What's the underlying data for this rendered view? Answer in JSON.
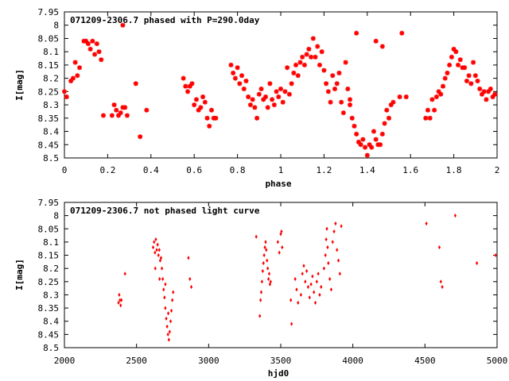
{
  "chart_data": [
    {
      "type": "scatter",
      "title": "071209-2306.7 phased with P=290.0day",
      "xlabel": "phase",
      "ylabel": "I[mag]",
      "xlim": [
        0,
        2
      ],
      "ylim": [
        8.5,
        7.95
      ],
      "y_inverted": true,
      "x_ticks": [
        "0",
        "0.2",
        "0.4",
        "0.6",
        "0.8",
        "1",
        "1.2",
        "1.4",
        "1.6",
        "1.8",
        "2"
      ],
      "y_ticks": [
        "7.95",
        "8",
        "8.05",
        "8.1",
        "8.15",
        "8.2",
        "8.25",
        "8.3",
        "8.35",
        "8.4",
        "8.45",
        "8.5"
      ],
      "grid": false,
      "marker": "cross-star",
      "color": "#ff0000",
      "points": [
        [
          0.0,
          8.25
        ],
        [
          0.01,
          8.27
        ],
        [
          0.03,
          8.21
        ],
        [
          0.04,
          8.2
        ],
        [
          0.05,
          8.14
        ],
        [
          0.06,
          8.19
        ],
        [
          0.07,
          8.16
        ],
        [
          0.09,
          8.06
        ],
        [
          0.1,
          8.06
        ],
        [
          0.11,
          8.07
        ],
        [
          0.12,
          8.09
        ],
        [
          0.13,
          8.06
        ],
        [
          0.14,
          8.11
        ],
        [
          0.15,
          8.07
        ],
        [
          0.16,
          8.1
        ],
        [
          0.17,
          8.13
        ],
        [
          0.18,
          8.34
        ],
        [
          0.22,
          8.34
        ],
        [
          0.23,
          8.3
        ],
        [
          0.24,
          8.32
        ],
        [
          0.25,
          8.34
        ],
        [
          0.26,
          8.33
        ],
        [
          0.27,
          8.31
        ],
        [
          0.28,
          8.31
        ],
        [
          0.29,
          8.34
        ],
        [
          0.27,
          8.0
        ],
        [
          0.33,
          8.22
        ],
        [
          0.35,
          8.42
        ],
        [
          0.38,
          8.32
        ],
        [
          0.55,
          8.2
        ],
        [
          0.56,
          8.23
        ],
        [
          0.57,
          8.25
        ],
        [
          0.58,
          8.23
        ],
        [
          0.59,
          8.22
        ],
        [
          0.6,
          8.3
        ],
        [
          0.61,
          8.28
        ],
        [
          0.62,
          8.32
        ],
        [
          0.63,
          8.31
        ],
        [
          0.64,
          8.27
        ],
        [
          0.65,
          8.29
        ],
        [
          0.66,
          8.35
        ],
        [
          0.67,
          8.38
        ],
        [
          0.68,
          8.32
        ],
        [
          0.69,
          8.35
        ],
        [
          0.7,
          8.35
        ],
        [
          0.77,
          8.15
        ],
        [
          0.78,
          8.18
        ],
        [
          0.79,
          8.2
        ],
        [
          0.8,
          8.16
        ],
        [
          0.81,
          8.22
        ],
        [
          0.82,
          8.19
        ],
        [
          0.83,
          8.24
        ],
        [
          0.84,
          8.21
        ],
        [
          0.85,
          8.27
        ],
        [
          0.86,
          8.3
        ],
        [
          0.87,
          8.28
        ],
        [
          0.88,
          8.31
        ],
        [
          0.89,
          8.35
        ],
        [
          0.9,
          8.26
        ],
        [
          0.91,
          8.24
        ],
        [
          0.92,
          8.28
        ],
        [
          0.93,
          8.27
        ],
        [
          0.94,
          8.31
        ],
        [
          0.95,
          8.22
        ],
        [
          0.96,
          8.28
        ],
        [
          0.97,
          8.3
        ],
        [
          0.98,
          8.25
        ],
        [
          0.99,
          8.27
        ],
        [
          1.0,
          8.24
        ],
        [
          1.01,
          8.29
        ],
        [
          1.02,
          8.25
        ],
        [
          1.03,
          8.16
        ],
        [
          1.04,
          8.26
        ],
        [
          1.05,
          8.22
        ],
        [
          1.06,
          8.18
        ],
        [
          1.07,
          8.15
        ],
        [
          1.08,
          8.19
        ],
        [
          1.09,
          8.14
        ],
        [
          1.1,
          8.12
        ],
        [
          1.11,
          8.15
        ],
        [
          1.12,
          8.11
        ],
        [
          1.13,
          8.09
        ],
        [
          1.14,
          8.12
        ],
        [
          1.15,
          8.05
        ],
        [
          1.16,
          8.12
        ],
        [
          1.17,
          8.08
        ],
        [
          1.18,
          8.15
        ],
        [
          1.19,
          8.1
        ],
        [
          1.2,
          8.17
        ],
        [
          1.21,
          8.22
        ],
        [
          1.22,
          8.25
        ],
        [
          1.23,
          8.29
        ],
        [
          1.24,
          8.19
        ],
        [
          1.25,
          8.24
        ],
        [
          1.26,
          8.22
        ],
        [
          1.27,
          8.18
        ],
        [
          1.28,
          8.29
        ],
        [
          1.29,
          8.33
        ],
        [
          1.3,
          8.14
        ],
        [
          1.31,
          8.24
        ],
        [
          1.32,
          8.28
        ],
        [
          1.33,
          8.35
        ],
        [
          1.34,
          8.38
        ],
        [
          1.35,
          8.41
        ],
        [
          1.36,
          8.44
        ],
        [
          1.37,
          8.45
        ],
        [
          1.38,
          8.43
        ],
        [
          1.39,
          8.46
        ],
        [
          1.4,
          8.49
        ],
        [
          1.41,
          8.45
        ],
        [
          1.42,
          8.46
        ],
        [
          1.43,
          8.4
        ],
        [
          1.44,
          8.43
        ],
        [
          1.45,
          8.45
        ],
        [
          1.46,
          8.45
        ],
        [
          1.47,
          8.41
        ],
        [
          1.48,
          8.37
        ],
        [
          1.49,
          8.32
        ],
        [
          1.5,
          8.35
        ],
        [
          1.51,
          8.3
        ],
        [
          1.52,
          8.29
        ],
        [
          1.55,
          8.27
        ],
        [
          1.58,
          8.27
        ],
        [
          1.35,
          8.03
        ],
        [
          1.44,
          8.06
        ],
        [
          1.47,
          8.08
        ],
        [
          1.56,
          8.03
        ],
        [
          1.32,
          8.3
        ],
        [
          1.67,
          8.35
        ],
        [
          1.68,
          8.32
        ],
        [
          1.69,
          8.35
        ],
        [
          1.7,
          8.28
        ],
        [
          1.71,
          8.32
        ],
        [
          1.72,
          8.27
        ],
        [
          1.73,
          8.25
        ],
        [
          1.74,
          8.26
        ],
        [
          1.75,
          8.23
        ],
        [
          1.76,
          8.2
        ],
        [
          1.77,
          8.18
        ],
        [
          1.78,
          8.15
        ],
        [
          1.79,
          8.12
        ],
        [
          1.8,
          8.09
        ],
        [
          1.81,
          8.1
        ],
        [
          1.82,
          8.15
        ],
        [
          1.83,
          8.13
        ],
        [
          1.84,
          8.16
        ],
        [
          1.85,
          8.16
        ],
        [
          1.86,
          8.21
        ],
        [
          1.87,
          8.19
        ],
        [
          1.88,
          8.22
        ],
        [
          1.89,
          8.14
        ],
        [
          1.9,
          8.19
        ],
        [
          1.91,
          8.21
        ],
        [
          1.92,
          8.24
        ],
        [
          1.93,
          8.26
        ],
        [
          1.94,
          8.25
        ],
        [
          1.95,
          8.28
        ],
        [
          1.96,
          8.25
        ],
        [
          1.97,
          8.24
        ],
        [
          1.98,
          8.27
        ],
        [
          1.99,
          8.26
        ]
      ]
    },
    {
      "type": "scatter",
      "title": "071209-2306.7 not phased light curve",
      "xlabel": "hjd0",
      "ylabel": "I[mag]",
      "xlim": [
        2000,
        5000
      ],
      "ylim": [
        8.5,
        7.95
      ],
      "y_inverted": true,
      "x_ticks": [
        "2000",
        "2500",
        "3000",
        "3500",
        "4000",
        "4500",
        "5000"
      ],
      "y_ticks": [
        "7.95",
        "8",
        "8.05",
        "8.1",
        "8.15",
        "8.2",
        "8.25",
        "8.3",
        "8.35",
        "8.4",
        "8.45",
        "8.5"
      ],
      "grid": false,
      "marker": "diamond",
      "color": "#ff0000",
      "points": [
        [
          2375,
          8.33
        ],
        [
          2380,
          8.3
        ],
        [
          2385,
          8.32
        ],
        [
          2390,
          8.34
        ],
        [
          2395,
          8.32
        ],
        [
          2420,
          8.22
        ],
        [
          2615,
          8.12
        ],
        [
          2622,
          8.1
        ],
        [
          2628,
          8.14
        ],
        [
          2634,
          8.09
        ],
        [
          2640,
          8.13
        ],
        [
          2646,
          8.11
        ],
        [
          2652,
          8.15
        ],
        [
          2658,
          8.13
        ],
        [
          2664,
          8.17
        ],
        [
          2670,
          8.16
        ],
        [
          2676,
          8.2
        ],
        [
          2682,
          8.24
        ],
        [
          2688,
          8.28
        ],
        [
          2694,
          8.31
        ],
        [
          2700,
          8.35
        ],
        [
          2706,
          8.39
        ],
        [
          2712,
          8.42
        ],
        [
          2718,
          8.45
        ],
        [
          2724,
          8.47
        ],
        [
          2730,
          8.44
        ],
        [
          2736,
          8.4
        ],
        [
          2742,
          8.36
        ],
        [
          2748,
          8.32
        ],
        [
          2754,
          8.29
        ],
        [
          2630,
          8.2
        ],
        [
          2660,
          8.24
        ],
        [
          2700,
          8.26
        ],
        [
          2720,
          8.37
        ],
        [
          2860,
          8.16
        ],
        [
          2870,
          8.24
        ],
        [
          2880,
          8.27
        ],
        [
          3330,
          8.08
        ],
        [
          3355,
          8.38
        ],
        [
          3360,
          8.32
        ],
        [
          3365,
          8.29
        ],
        [
          3370,
          8.25
        ],
        [
          3375,
          8.21
        ],
        [
          3380,
          8.18
        ],
        [
          3385,
          8.15
        ],
        [
          3390,
          8.12
        ],
        [
          3395,
          8.1
        ],
        [
          3400,
          8.13
        ],
        [
          3405,
          8.17
        ],
        [
          3410,
          8.2
        ],
        [
          3415,
          8.24
        ],
        [
          3420,
          8.22
        ],
        [
          3425,
          8.26
        ],
        [
          3430,
          8.25
        ],
        [
          3480,
          8.1
        ],
        [
          3490,
          8.14
        ],
        [
          3500,
          8.07
        ],
        [
          3505,
          8.06
        ],
        [
          3510,
          8.12
        ],
        [
          3570,
          8.32
        ],
        [
          3575,
          8.41
        ],
        [
          3600,
          8.24
        ],
        [
          3610,
          8.28
        ],
        [
          3620,
          8.33
        ],
        [
          3640,
          8.3
        ],
        [
          3650,
          8.22
        ],
        [
          3660,
          8.19
        ],
        [
          3670,
          8.25
        ],
        [
          3680,
          8.21
        ],
        [
          3690,
          8.27
        ],
        [
          3700,
          8.31
        ],
        [
          3710,
          8.26
        ],
        [
          3720,
          8.23
        ],
        [
          3730,
          8.29
        ],
        [
          3740,
          8.33
        ],
        [
          3750,
          8.25
        ],
        [
          3760,
          8.22
        ],
        [
          3770,
          8.3
        ],
        [
          3780,
          8.27
        ],
        [
          3800,
          8.2
        ],
        [
          3810,
          8.15
        ],
        [
          3815,
          8.09
        ],
        [
          3820,
          8.05
        ],
        [
          3825,
          8.12
        ],
        [
          3830,
          8.18
        ],
        [
          3840,
          8.24
        ],
        [
          3850,
          8.28
        ],
        [
          3860,
          8.1
        ],
        [
          3870,
          8.06
        ],
        [
          3880,
          8.03
        ],
        [
          3890,
          8.13
        ],
        [
          3900,
          8.17
        ],
        [
          3910,
          8.22
        ],
        [
          3920,
          8.04
        ],
        [
          4510,
          8.03
        ],
        [
          4600,
          8.12
        ],
        [
          4610,
          8.25
        ],
        [
          4620,
          8.27
        ],
        [
          4710,
          8.0
        ],
        [
          4860,
          8.18
        ],
        [
          4990,
          8.15
        ]
      ]
    }
  ]
}
